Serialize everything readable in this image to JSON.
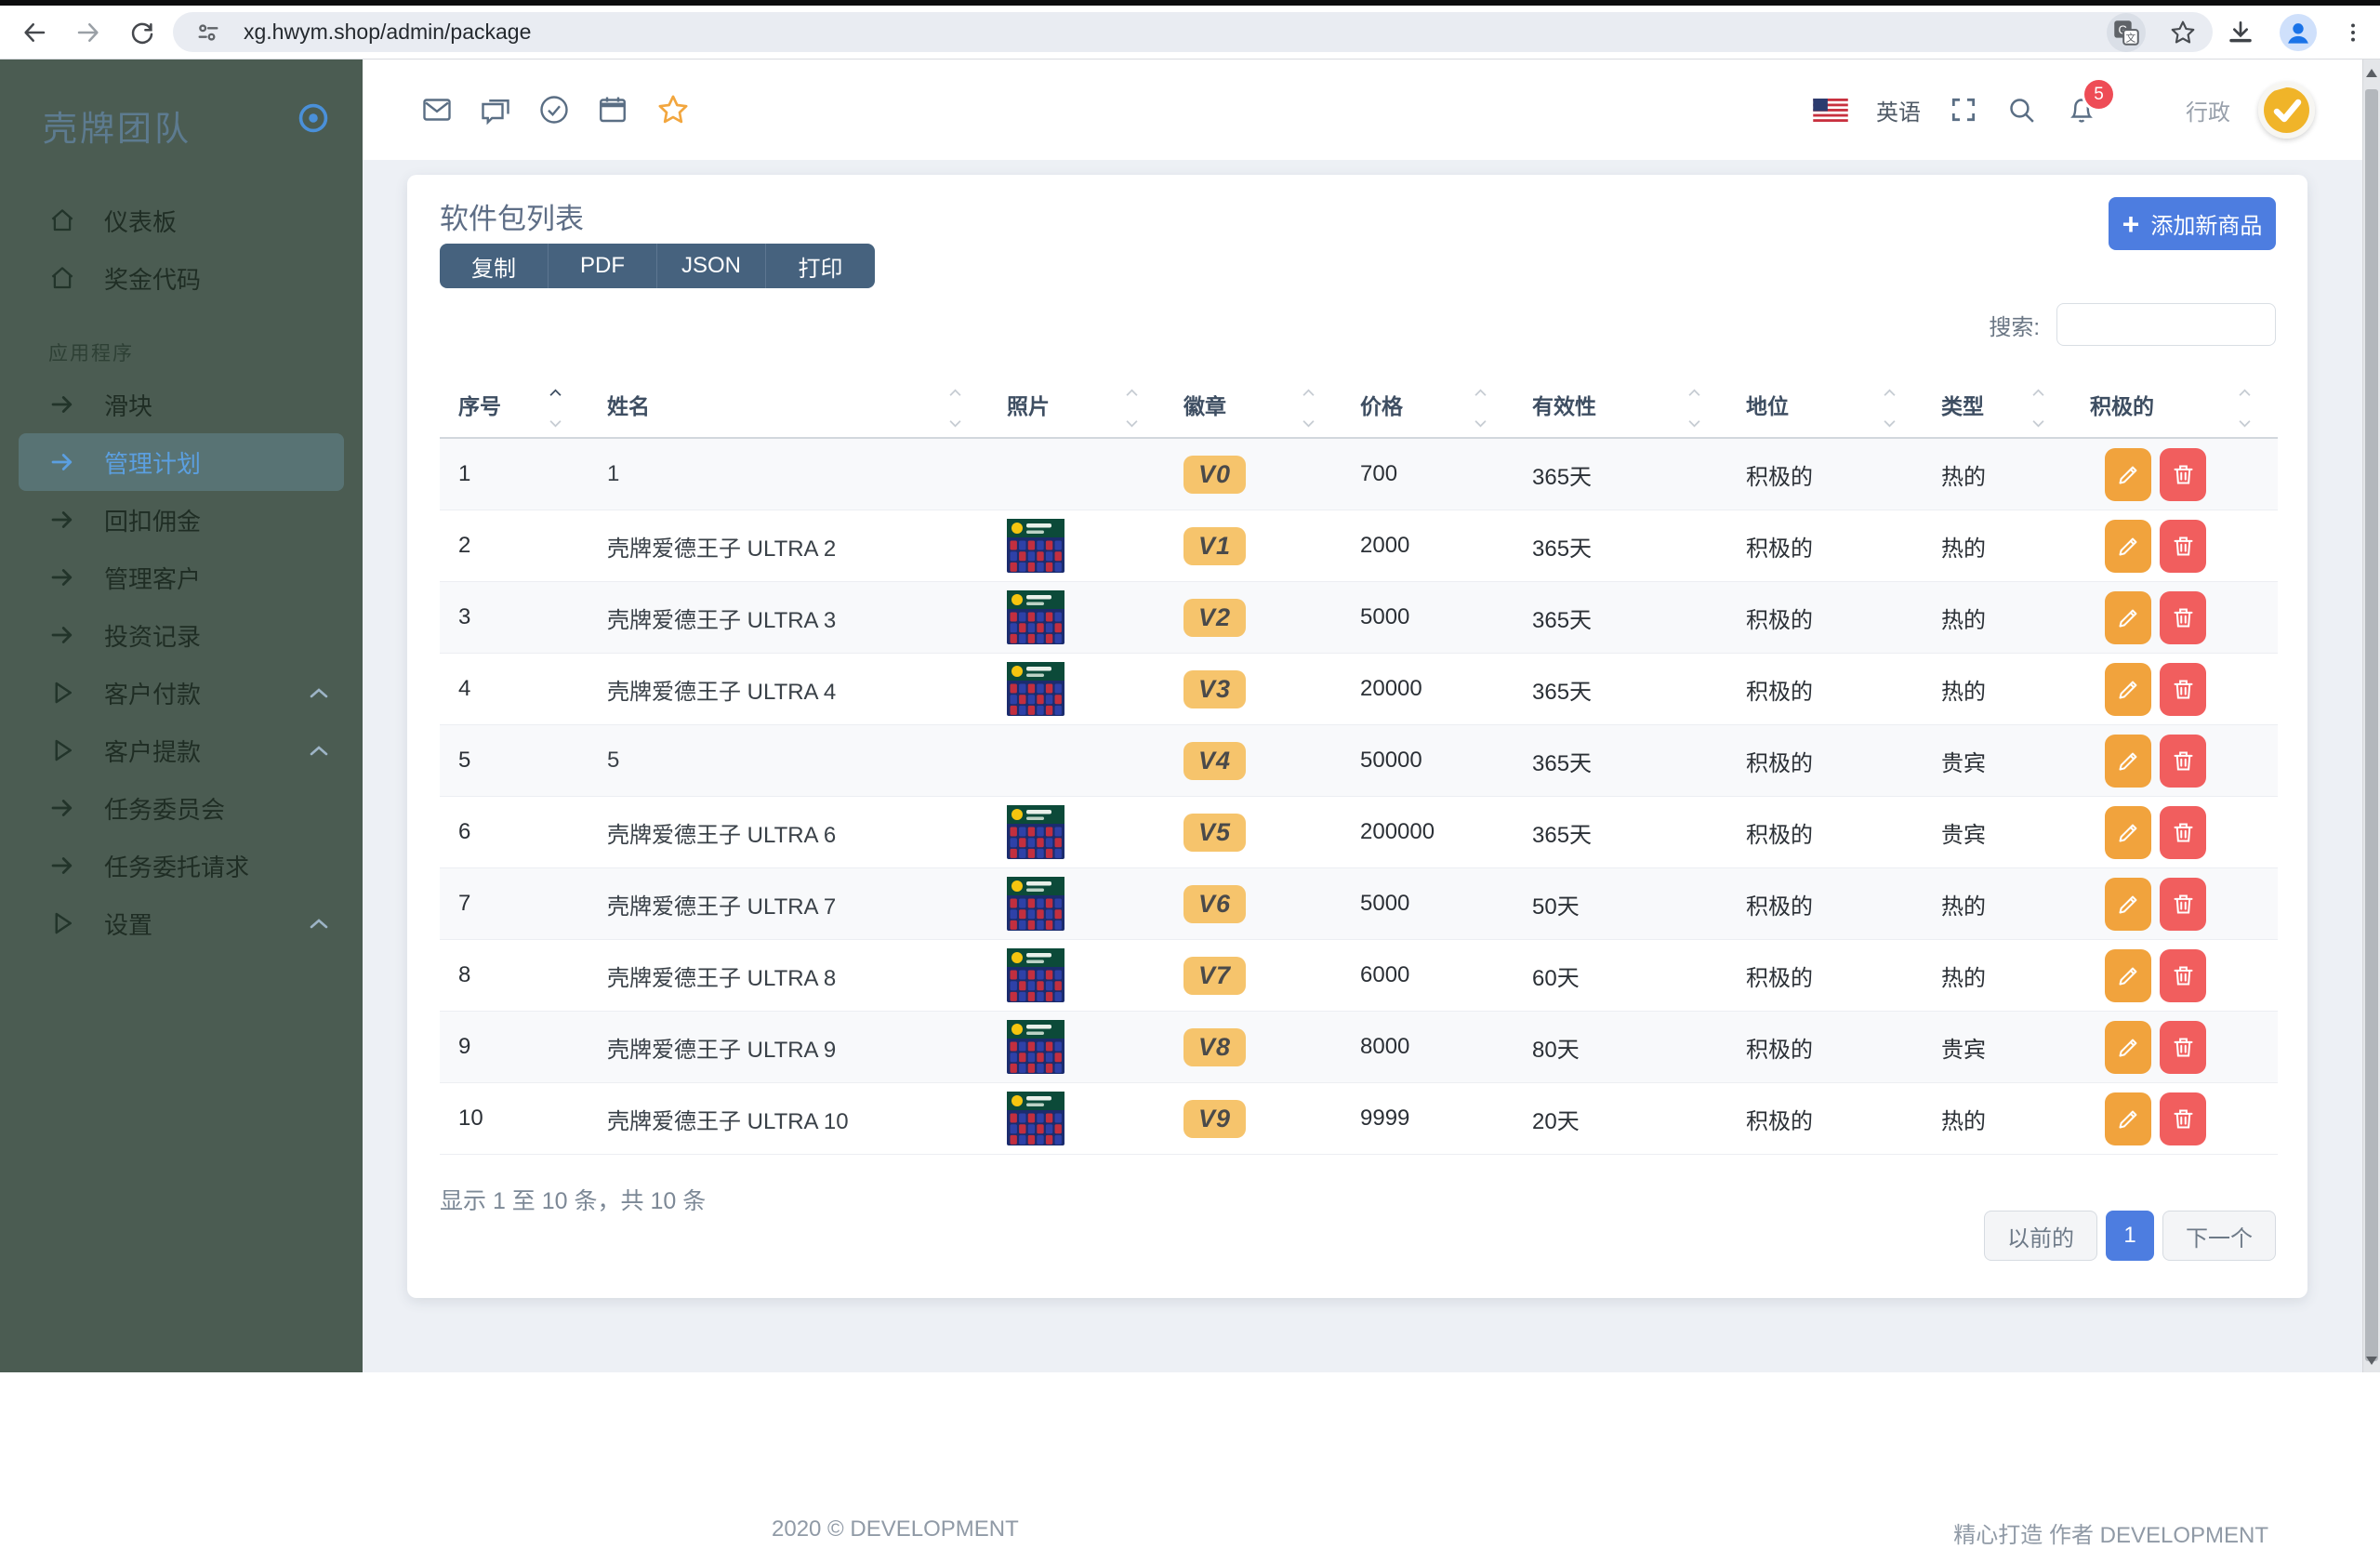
{
  "browser": {
    "url": "xg.hwym.shop/admin/package"
  },
  "sidebar": {
    "logo": "壳牌团队",
    "sections": [
      {
        "label": "",
        "items": [
          {
            "id": "dashboard",
            "icon": "home",
            "label": "仪表板"
          },
          {
            "id": "bonus-code",
            "icon": "home",
            "label": "奖金代码"
          }
        ]
      },
      {
        "label": "应用程序",
        "items": [
          {
            "id": "slider",
            "icon": "arrow",
            "label": "滑块"
          },
          {
            "id": "manage-plans",
            "icon": "arrow",
            "label": "管理计划",
            "active": true
          },
          {
            "id": "rebate-commission",
            "icon": "arrow",
            "label": "回扣佣金"
          },
          {
            "id": "manage-customers",
            "icon": "arrow",
            "label": "管理客户"
          },
          {
            "id": "investment-records",
            "icon": "arrow",
            "label": "投资记录"
          },
          {
            "id": "customer-payments",
            "icon": "play",
            "label": "客户付款",
            "collapsible": true
          },
          {
            "id": "customer-withdrawals",
            "icon": "play",
            "label": "客户提款",
            "collapsible": true
          },
          {
            "id": "task-committee",
            "icon": "arrow",
            "label": "任务委员会"
          },
          {
            "id": "task-delegation-requests",
            "icon": "arrow",
            "label": "任务委托请求"
          },
          {
            "id": "settings",
            "icon": "play",
            "label": "设置",
            "collapsible": true
          }
        ]
      }
    ]
  },
  "topbar": {
    "language": "英语",
    "notification_count": "5",
    "user_role": "行政"
  },
  "page": {
    "title": "软件包列表",
    "export_buttons": [
      {
        "id": "copy",
        "label": "复制"
      },
      {
        "id": "pdf",
        "label": "PDF"
      },
      {
        "id": "json",
        "label": "JSON"
      },
      {
        "id": "print",
        "label": "打印"
      }
    ],
    "add_button_label": "添加新商品",
    "search_label": "搜索:",
    "search_value": ""
  },
  "table": {
    "columns": [
      {
        "id": "serial",
        "label": "序号",
        "sort": "asc"
      },
      {
        "id": "name",
        "label": "姓名"
      },
      {
        "id": "photo",
        "label": "照片"
      },
      {
        "id": "badge",
        "label": "徽章"
      },
      {
        "id": "price",
        "label": "价格"
      },
      {
        "id": "validity",
        "label": "有效性"
      },
      {
        "id": "status",
        "label": "地位"
      },
      {
        "id": "type",
        "label": "类型"
      },
      {
        "id": "active",
        "label": "积极的"
      }
    ],
    "rows": [
      {
        "no": "1",
        "name": "1",
        "photo": false,
        "badge": "V0",
        "price": "700",
        "validity": "365天",
        "status": "积极的",
        "type": "热的"
      },
      {
        "no": "2",
        "name": "壳牌爱德王子 ULTRA 2",
        "photo": true,
        "badge": "V1",
        "price": "2000",
        "validity": "365天",
        "status": "积极的",
        "type": "热的"
      },
      {
        "no": "3",
        "name": "壳牌爱德王子 ULTRA 3",
        "photo": true,
        "badge": "V2",
        "price": "5000",
        "validity": "365天",
        "status": "积极的",
        "type": "热的"
      },
      {
        "no": "4",
        "name": "壳牌爱德王子 ULTRA 4",
        "photo": true,
        "badge": "V3",
        "price": "20000",
        "validity": "365天",
        "status": "积极的",
        "type": "热的"
      },
      {
        "no": "5",
        "name": "5",
        "photo": false,
        "badge": "V4",
        "price": "50000",
        "validity": "365天",
        "status": "积极的",
        "type": "贵宾"
      },
      {
        "no": "6",
        "name": "壳牌爱德王子 ULTRA 6",
        "photo": true,
        "badge": "V5",
        "price": "200000",
        "validity": "365天",
        "status": "积极的",
        "type": "贵宾"
      },
      {
        "no": "7",
        "name": "壳牌爱德王子 ULTRA 7",
        "photo": true,
        "badge": "V6",
        "price": "5000",
        "validity": "50天",
        "status": "积极的",
        "type": "热的"
      },
      {
        "no": "8",
        "name": "壳牌爱德王子 ULTRA 8",
        "photo": true,
        "badge": "V7",
        "price": "6000",
        "validity": "60天",
        "status": "积极的",
        "type": "热的"
      },
      {
        "no": "9",
        "name": "壳牌爱德王子 ULTRA 9",
        "photo": true,
        "badge": "V8",
        "price": "8000",
        "validity": "80天",
        "status": "积极的",
        "type": "贵宾"
      },
      {
        "no": "10",
        "name": "壳牌爱德王子 ULTRA 10",
        "photo": true,
        "badge": "V9",
        "price": "9999",
        "validity": "20天",
        "status": "积极的",
        "type": "热的"
      }
    ],
    "info": "显示 1 至 10 条，共 10 条",
    "pagination": {
      "prev": "以前的",
      "current": "1",
      "next": "下一个"
    }
  },
  "footer": {
    "left": "2020 © DEVELOPMENT",
    "right": "精心打造 作者 DEVELOPMENT"
  },
  "colors": {
    "accent_blue": "#4d7de0",
    "badge_yellow": "#f6c46c",
    "edit_orange": "#f1a33d",
    "delete_red": "#f15e5e",
    "sidebar_green": "#4b5c52",
    "notification_red": "#ee4c56"
  }
}
